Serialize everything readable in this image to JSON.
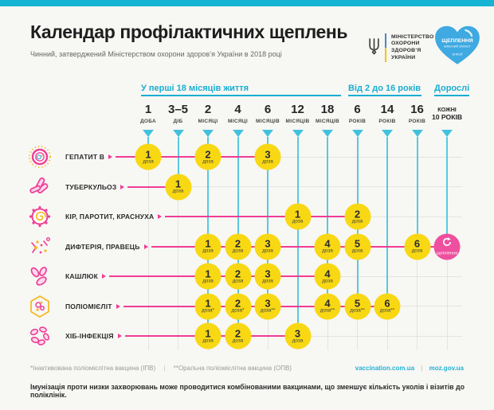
{
  "header": {
    "title": "Календар профілактичних щеплень",
    "subtitle": "Чинний, затверджений Міністерством охорони здоров’я України в 2018 році",
    "ministry_lines": [
      "МІНІСТЕРСТВО",
      "ОХОРОНИ",
      "ЗДОРОВ’Я",
      "УКРАЇНИ"
    ],
    "heart": {
      "line1": "ЩЕПЛЕННЯ",
      "line2": "ВЛАСНИЙ ЗАХИСТ",
      "brand": "unicef"
    }
  },
  "colors": {
    "accent_cyan": "#14b4d2",
    "light_cyan": "#58c9e2",
    "pink": "#f03c95",
    "booster_pink": "#ee4f9e",
    "yellow": "#f8d813",
    "dark": "#2b2b2b"
  },
  "chart_data": {
    "type": "table",
    "title": "Календар профілактичних щеплень",
    "groups": [
      {
        "label": "У перші 18 місяців життя",
        "from": 0,
        "to": 6
      },
      {
        "label": "Від 2 до 16 років",
        "from": 7,
        "to": 9
      },
      {
        "label": "Дорослі",
        "from": 10,
        "to": 10
      }
    ],
    "columns": [
      {
        "value": "1",
        "unit": "ДОБА"
      },
      {
        "value": "3–5",
        "unit": "ДІБ"
      },
      {
        "value": "2",
        "unit": "МІСЯЦІ"
      },
      {
        "value": "4",
        "unit": "МІСЯЦІ"
      },
      {
        "value": "6",
        "unit": "МІСЯЦІВ"
      },
      {
        "value": "12",
        "unit": "МІСЯЦІВ"
      },
      {
        "value": "18",
        "unit": "МІСЯЦІВ"
      },
      {
        "value": "6",
        "unit": "РОКІВ"
      },
      {
        "value": "14",
        "unit": "РОКІВ"
      },
      {
        "value": "16",
        "unit": "РОКІВ"
      },
      {
        "value": "КОЖНІ",
        "unit": "10 РОКІВ",
        "adult": true
      }
    ],
    "rows": [
      {
        "disease": "ГЕПАТИТ B",
        "icon": "hepatitis-b-icon",
        "doses": [
          {
            "col": 0,
            "num": "1",
            "label": "доза"
          },
          {
            "col": 2,
            "num": "2",
            "label": "доза"
          },
          {
            "col": 4,
            "num": "3",
            "label": "доза"
          }
        ]
      },
      {
        "disease": "ТУБЕРКУЛЬОЗ",
        "icon": "tuberculosis-icon",
        "doses": [
          {
            "col": 1,
            "num": "1",
            "label": "доза"
          }
        ]
      },
      {
        "disease": "КІР, ПАРОТИТ, КРАСНУХА",
        "icon": "measles-icon",
        "doses": [
          {
            "col": 5,
            "num": "1",
            "label": "доза"
          },
          {
            "col": 7,
            "num": "2",
            "label": "доза"
          }
        ]
      },
      {
        "disease": "ДИФТЕРІЯ, ПРАВЕЦЬ",
        "icon": "diphtheria-icon",
        "doses": [
          {
            "col": 2,
            "num": "1",
            "label": "доза"
          },
          {
            "col": 3,
            "num": "2",
            "label": "доза"
          },
          {
            "col": 4,
            "num": "3",
            "label": "доза"
          },
          {
            "col": 6,
            "num": "4",
            "label": "доза"
          },
          {
            "col": 7,
            "num": "5",
            "label": "доза"
          },
          {
            "col": 9,
            "num": "6",
            "label": "доза"
          },
          {
            "col": 10,
            "booster": true,
            "label": "щеплення"
          }
        ]
      },
      {
        "disease": "КАШЛЮК",
        "icon": "pertussis-icon",
        "doses": [
          {
            "col": 2,
            "num": "1",
            "label": "доза"
          },
          {
            "col": 3,
            "num": "2",
            "label": "доза"
          },
          {
            "col": 4,
            "num": "3",
            "label": "доза"
          },
          {
            "col": 6,
            "num": "4",
            "label": "доза"
          }
        ]
      },
      {
        "disease": "ПОЛІОМІЄЛІТ",
        "icon": "polio-icon",
        "doses": [
          {
            "col": 2,
            "num": "1",
            "label": "доза*"
          },
          {
            "col": 3,
            "num": "2",
            "label": "доза*"
          },
          {
            "col": 4,
            "num": "3",
            "label": "доза**"
          },
          {
            "col": 6,
            "num": "4",
            "label": "доза**"
          },
          {
            "col": 7,
            "num": "5",
            "label": "доза**"
          },
          {
            "col": 8,
            "num": "6",
            "label": "доза**"
          }
        ]
      },
      {
        "disease": "ХІБ-ІНФЕКЦІЯ",
        "icon": "hib-icon",
        "doses": [
          {
            "col": 2,
            "num": "1",
            "label": "доза"
          },
          {
            "col": 3,
            "num": "2",
            "label": "доза"
          },
          {
            "col": 5,
            "num": "3",
            "label": "доза"
          }
        ]
      }
    ]
  },
  "footer": {
    "footnote1": "*Інактивована поліомієлітна вакцина (ІПВ)",
    "footnote2": "**Оральна поліомієлітна вакцина (ОПВ)",
    "separator": "|",
    "link1": "vaccination.com.ua",
    "link2": "moz.gov.ua",
    "note": "Імунізація проти низки захворювань може проводитися комбінованими вакцинами, що зменшує кількість уколів і візитів до поліклінік."
  }
}
